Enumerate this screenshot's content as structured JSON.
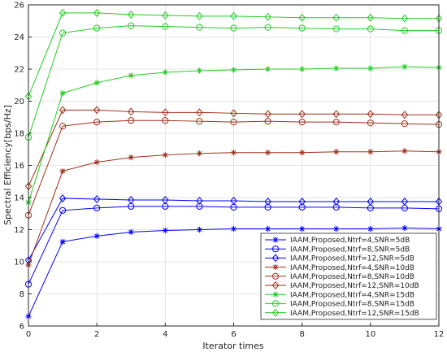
{
  "chart_data": {
    "type": "line",
    "xlabel": "Iterator times",
    "ylabel": "Spectral Efficiency[bps/Hz]",
    "xlim": [
      0,
      12
    ],
    "ylim": [
      6,
      26
    ],
    "xticks": [
      0,
      2,
      4,
      6,
      8,
      10,
      12
    ],
    "yticks": [
      6,
      8,
      10,
      12,
      14,
      16,
      18,
      20,
      22,
      24,
      26
    ],
    "grid": true,
    "legend_position": "bottom-right",
    "x": [
      0,
      1,
      2,
      3,
      4,
      5,
      6,
      7,
      8,
      9,
      10,
      11,
      12
    ],
    "series": [
      {
        "name": "IAAM,Proposed,Ntrf=4,SNR=5dB",
        "color": "#0000ff",
        "marker": "asterisk",
        "values": [
          6.6,
          11.25,
          11.6,
          11.85,
          11.95,
          12.0,
          12.05,
          12.05,
          12.05,
          12.05,
          12.05,
          12.1,
          12.05
        ]
      },
      {
        "name": "IAAM,Proposed,Ntrf=8,SNR=5dB",
        "color": "#0000ff",
        "marker": "circle",
        "values": [
          8.6,
          13.2,
          13.35,
          13.45,
          13.45,
          13.45,
          13.4,
          13.4,
          13.4,
          13.4,
          13.35,
          13.35,
          13.3
        ]
      },
      {
        "name": "IAAM,Proposed,Ntrf=12,SNR=5dB",
        "color": "#0000ff",
        "marker": "diamond",
        "values": [
          10.1,
          13.95,
          13.9,
          13.85,
          13.85,
          13.8,
          13.8,
          13.75,
          13.75,
          13.75,
          13.75,
          13.75,
          13.75
        ]
      },
      {
        "name": "IAAM,Proposed,Ntrf=4,SNR=10dB",
        "color": "#a0301a",
        "marker": "asterisk",
        "values": [
          9.8,
          15.65,
          16.2,
          16.5,
          16.65,
          16.75,
          16.8,
          16.8,
          16.8,
          16.85,
          16.85,
          16.9,
          16.85
        ]
      },
      {
        "name": "IAAM,Proposed,Ntrf=8,SNR=10dB",
        "color": "#a0301a",
        "marker": "circle",
        "values": [
          12.9,
          18.45,
          18.7,
          18.8,
          18.8,
          18.75,
          18.7,
          18.75,
          18.7,
          18.7,
          18.65,
          18.6,
          18.55
        ]
      },
      {
        "name": "IAAM,Proposed,Ntrf=12,SNR=10dB",
        "color": "#a0301a",
        "marker": "diamond",
        "values": [
          14.7,
          19.45,
          19.45,
          19.35,
          19.3,
          19.3,
          19.25,
          19.2,
          19.2,
          19.2,
          19.2,
          19.15,
          19.15
        ]
      },
      {
        "name": "IAAM,Proposed,Ntrf=4,SNR=15dB",
        "color": "#22cc22",
        "marker": "asterisk",
        "values": [
          13.7,
          20.5,
          21.15,
          21.6,
          21.8,
          21.9,
          21.95,
          22.0,
          22.0,
          22.05,
          22.05,
          22.15,
          22.1
        ]
      },
      {
        "name": "IAAM,Proposed,Ntrf=8,SNR=15dB",
        "color": "#22cc22",
        "marker": "circle",
        "values": [
          17.75,
          24.25,
          24.55,
          24.7,
          24.65,
          24.6,
          24.55,
          24.6,
          24.55,
          24.5,
          24.5,
          24.4,
          24.4
        ]
      },
      {
        "name": "IAAM,Proposed,Ntrf=12,SNR=15dB",
        "color": "#22cc22",
        "marker": "diamond",
        "values": [
          20.3,
          25.5,
          25.5,
          25.4,
          25.35,
          25.3,
          25.3,
          25.25,
          25.2,
          25.2,
          25.2,
          25.15,
          25.15
        ]
      }
    ]
  }
}
